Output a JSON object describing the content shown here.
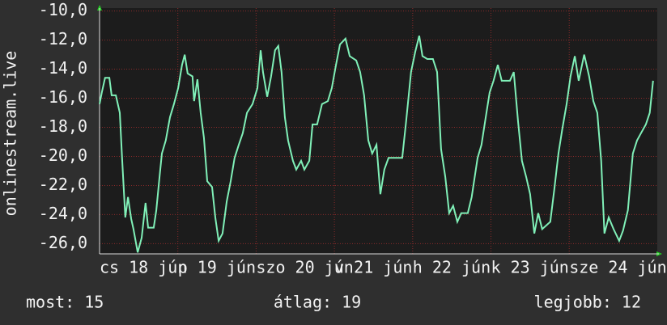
{
  "chart_data": {
    "type": "line",
    "ylabel": "onlinestream.live",
    "color": "#80f0b8",
    "grid": true,
    "xlim": [
      0,
      171
    ],
    "ylim": [
      -26.7,
      -9.8
    ],
    "yticks": [
      {
        "value": -10,
        "label": "-10,0"
      },
      {
        "value": -12,
        "label": "-12,0"
      },
      {
        "value": -14,
        "label": "-14,0"
      },
      {
        "value": -16,
        "label": "-16,0"
      },
      {
        "value": -18,
        "label": "-18,0"
      },
      {
        "value": -20,
        "label": "-20,0"
      },
      {
        "value": -22,
        "label": "-22,0"
      },
      {
        "value": -24,
        "label": "-24,0"
      },
      {
        "value": -26,
        "label": "-26,0"
      }
    ],
    "xticks": [
      {
        "value": 0,
        "label": "cs 18 jún"
      },
      {
        "value": 24,
        "label": "p 19 jún"
      },
      {
        "value": 48,
        "label": "szo 20 jún"
      },
      {
        "value": 72,
        "label": "v 21 jún"
      },
      {
        "value": 96,
        "label": "h 22 jún"
      },
      {
        "value": 120,
        "label": "k 23 jún"
      },
      {
        "value": 144,
        "label": "sze 24 jún"
      }
    ],
    "x": [
      0,
      0.7,
      1.7,
      3,
      3.7,
      5,
      6.2,
      6.9,
      7.9,
      8.7,
      9.7,
      10.4,
      11.7,
      12.9,
      14.1,
      14.9,
      16.6,
      17.4,
      18.4,
      19.1,
      20.3,
      21.6,
      22.8,
      24.1,
      25.3,
      26.1,
      27,
      28.5,
      29,
      30,
      31,
      32,
      33,
      34.5,
      35.5,
      36.5,
      37.7,
      39,
      40.2,
      41.4,
      42.7,
      43.9,
      45.2,
      46.9,
      48.4,
      49.4,
      50.1,
      51.4,
      52.6,
      53.8,
      54.8,
      55.8,
      56.8,
      57.8,
      59.3,
      60.3,
      61.8,
      62.8,
      64.3,
      65.3,
      66.7,
      68.2,
      70,
      71.2,
      72.5,
      73.7,
      75.4,
      76.7,
      78.7,
      79.9,
      81.1,
      82.4,
      83.6,
      84.9,
      86.1,
      87.3,
      88.6,
      91.1,
      92.8,
      94,
      95.5,
      96.8,
      98,
      99,
      100.5,
      102.2,
      103.5,
      104.7,
      106,
      107.2,
      108.4,
      109.7,
      110.9,
      112.9,
      114.1,
      115.9,
      117.1,
      118.4,
      119.6,
      120.8,
      122.1,
      123.3,
      125.8,
      127,
      128.3,
      129.5,
      130.8,
      132,
      133.3,
      134.5,
      135.7,
      138.2,
      139.4,
      140.7,
      141.9,
      143.2,
      144.4,
      145.7,
      146.9,
      148.6,
      150.1,
      151.4,
      152.6,
      153.8,
      154.8,
      156.1,
      157.6,
      159.3,
      160.5,
      162,
      163.5,
      164.8,
      166,
      167.5,
      168.7,
      169.7
    ],
    "values": [
      -16.4,
      -15.6,
      -14.6,
      -14.6,
      -15.8,
      -15.8,
      -17,
      -20.1,
      -24.2,
      -22.8,
      -24.3,
      -25,
      -26.6,
      -25.6,
      -23.2,
      -24.9,
      -24.9,
      -23.7,
      -21.4,
      -19.8,
      -18.9,
      -17.3,
      -16.4,
      -15.3,
      -13.7,
      -13,
      -14.3,
      -14.5,
      -16.2,
      -14.7,
      -17,
      -18.7,
      -21.7,
      -22.1,
      -24.2,
      -25.8,
      -25.3,
      -23.1,
      -21.7,
      -20.1,
      -19.2,
      -18.4,
      -17,
      -16.4,
      -15.3,
      -12.7,
      -14.2,
      -15.9,
      -14.5,
      -12.7,
      -12.4,
      -14.2,
      -17.3,
      -18.9,
      -20.3,
      -20.9,
      -20.3,
      -20.9,
      -20.3,
      -17.8,
      -17.8,
      -16.4,
      -16.2,
      -15.3,
      -13.7,
      -12.3,
      -11.9,
      -13.1,
      -13.4,
      -14.2,
      -15.8,
      -18.9,
      -19.8,
      -19.2,
      -22.6,
      -20.9,
      -20.1,
      -20.1,
      -20.1,
      -17.6,
      -14.2,
      -12.8,
      -11.7,
      -13.1,
      -13.3,
      -13.3,
      -14.2,
      -19.5,
      -21.4,
      -23.9,
      -23.4,
      -24.5,
      -23.9,
      -23.9,
      -22.8,
      -20.1,
      -19.2,
      -17.3,
      -15.6,
      -14.8,
      -13.7,
      -14.8,
      -14.8,
      -14.2,
      -17.6,
      -20.3,
      -21.4,
      -22.6,
      -25.3,
      -23.9,
      -25,
      -24.5,
      -22.3,
      -19.8,
      -18.1,
      -16.4,
      -14.5,
      -13.1,
      -14.8,
      -13,
      -14.5,
      -16.2,
      -17,
      -20.3,
      -25.3,
      -24.2,
      -25,
      -25.8,
      -25.1,
      -23.7,
      -19.8,
      -18.9,
      -18.4,
      -17.8,
      -17,
      -14.8
    ],
    "footer": [
      "most: 15",
      "átlag: 19",
      "legjobb: 12"
    ]
  }
}
